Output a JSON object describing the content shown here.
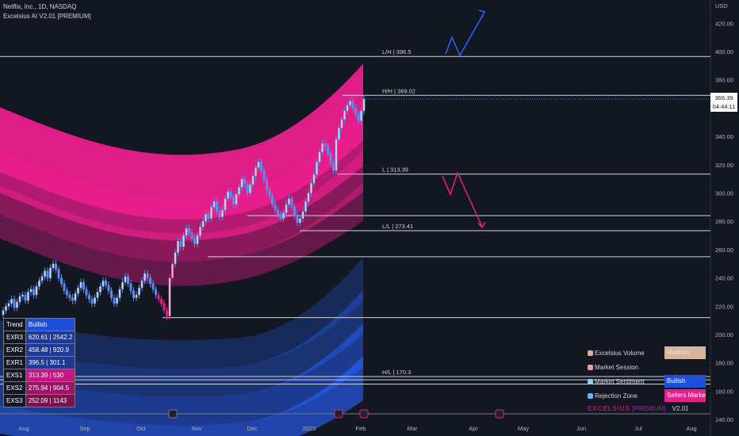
{
  "header": {
    "title": "Netflix, Inc., 1D, NASDAQ",
    "indicator": "Excelsius AI V2.01 [PREMIUM]"
  },
  "chart_data": {
    "type": "candlestick",
    "symbol": "NFLX",
    "timeframe": "1D",
    "y_unit": "USD",
    "y_ticks": [
      140,
      160,
      180,
      200,
      220,
      240,
      260,
      280,
      300,
      320,
      340,
      360,
      380,
      400,
      420
    ],
    "x_ticks": [
      "Aug",
      "Sep",
      "Oct",
      "Nov",
      "Dec",
      "2023",
      "Feb",
      "Mar",
      "Apr",
      "May",
      "Jun",
      "Jul",
      "Aug"
    ],
    "last_price": "366.39",
    "countdown": "04:44:11",
    "levels": [
      {
        "label": "L/H | 396.5",
        "value": 396.5
      },
      {
        "label": "H/H | 369.02",
        "value": 369.02
      },
      {
        "label": "L | 313.39",
        "value": 313.39
      },
      {
        "label": "L/L | 273.41",
        "value": 273.41
      },
      {
        "label": "H/L | 170.3",
        "value": 170.3
      }
    ],
    "closes": [
      217,
      220,
      222,
      225,
      219,
      223,
      227,
      228,
      224,
      230,
      232,
      228,
      234,
      238,
      241,
      245,
      240,
      247,
      250,
      246,
      240,
      236,
      231,
      228,
      226,
      224,
      229,
      233,
      237,
      232,
      228,
      225,
      222,
      226,
      230,
      234,
      238,
      235,
      231,
      226,
      222,
      226,
      232,
      237,
      241,
      236,
      231,
      226,
      228,
      233,
      238,
      243,
      240,
      236,
      232,
      228,
      225,
      222,
      217,
      213,
      240,
      250,
      258,
      266,
      262,
      270,
      275,
      272,
      268,
      264,
      270,
      276,
      280,
      285,
      282,
      290,
      294,
      287,
      283,
      288,
      296,
      301,
      297,
      292,
      299,
      304,
      310,
      306,
      300,
      306,
      312,
      318,
      322,
      316,
      309,
      302,
      298,
      292,
      288,
      285,
      282,
      286,
      292,
      296,
      290,
      284,
      279,
      282,
      287,
      294,
      300,
      307,
      313,
      322,
      329,
      335,
      333,
      328,
      321,
      316,
      338,
      346,
      352,
      358,
      362,
      365,
      360,
      356,
      351,
      358,
      366.39
    ]
  },
  "table": {
    "rows": [
      {
        "key": "Trend",
        "value": "Bullish",
        "color": "#1e4fd8"
      },
      {
        "key": "EXR3",
        "value": "620.61 | 2542.2",
        "color": "#1f3a93"
      },
      {
        "key": "EXR2",
        "value": "458.48 | 920.9",
        "color": "#1f3a93"
      },
      {
        "key": "EXR1",
        "value": "396.5 | 301.1",
        "color": "#1f3a93"
      },
      {
        "key": "EXS1",
        "value": "313.39 | 530",
        "color": "#c2187f"
      },
      {
        "key": "EXS2",
        "value": "275.94 | 904.5",
        "color": "#9b1565"
      },
      {
        "key": "EXS3",
        "value": "252.09 | 1143",
        "color": "#7a124f"
      }
    ]
  },
  "legend": {
    "volume_label": "Excelsius Volume",
    "volume_value": "Medium",
    "session_label": "Market Session",
    "sentiment_label": "Market Sentiment",
    "sentiment_value": "Bullish",
    "rejection_label": "Rejection Zone",
    "rejection_value": "Sellers Market"
  },
  "brand": {
    "name": "EXCELSIUS",
    "tag": "[PREMIUM]",
    "version": "V2.01"
  },
  "colors": {
    "background": "#131722",
    "bull": "#5b8def",
    "bear": "#e91e8c",
    "upper_band": "#e91e8c",
    "lower_band": "#2962ff",
    "sentiment": "#1e4fd8",
    "rejection": "#e91e8c",
    "volume_badge": "#d8b49c"
  }
}
